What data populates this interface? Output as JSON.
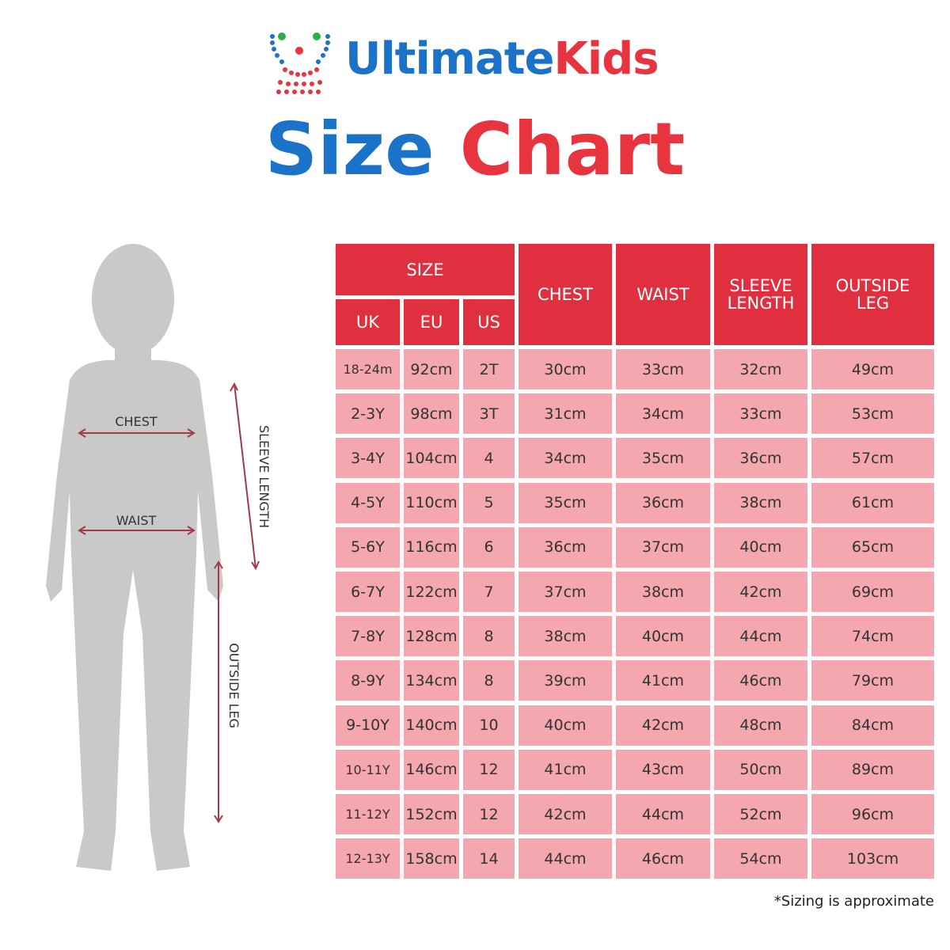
{
  "brand": {
    "first": "Ultimate",
    "second": "Kids"
  },
  "title": {
    "first": "Size",
    "second": "Chart"
  },
  "figure": {
    "chest": "CHEST",
    "waist": "WAIST",
    "sleeve": "SLEEVE LENGTH",
    "leg": "OUTSIDE LEG"
  },
  "table": {
    "group_header": "SIZE",
    "size_headers": [
      "UK",
      "EU",
      "US"
    ],
    "headers": [
      "CHEST",
      "WAIST",
      "SLEEVE LENGTH",
      "OUTSIDE LEG"
    ],
    "rows": [
      [
        "18-24m",
        "92cm",
        "2T",
        "30cm",
        "33cm",
        "32cm",
        "49cm"
      ],
      [
        "2-3Y",
        "98cm",
        "3T",
        "31cm",
        "34cm",
        "33cm",
        "53cm"
      ],
      [
        "3-4Y",
        "104cm",
        "4",
        "34cm",
        "35cm",
        "36cm",
        "57cm"
      ],
      [
        "4-5Y",
        "110cm",
        "5",
        "35cm",
        "36cm",
        "38cm",
        "61cm"
      ],
      [
        "5-6Y",
        "116cm",
        "6",
        "36cm",
        "37cm",
        "40cm",
        "65cm"
      ],
      [
        "6-7Y",
        "122cm",
        "7",
        "37cm",
        "38cm",
        "42cm",
        "69cm"
      ],
      [
        "7-8Y",
        "128cm",
        "8",
        "38cm",
        "40cm",
        "44cm",
        "74cm"
      ],
      [
        "8-9Y",
        "134cm",
        "8",
        "39cm",
        "41cm",
        "46cm",
        "79cm"
      ],
      [
        "9-10Y",
        "140cm",
        "10",
        "40cm",
        "42cm",
        "48cm",
        "84cm"
      ],
      [
        "10-11Y",
        "146cm",
        "12",
        "41cm",
        "43cm",
        "50cm",
        "89cm"
      ],
      [
        "11-12Y",
        "152cm",
        "12",
        "42cm",
        "44cm",
        "52cm",
        "96cm"
      ],
      [
        "12-13Y",
        "158cm",
        "14",
        "44cm",
        "46cm",
        "54cm",
        "103cm"
      ]
    ]
  },
  "note": "*Sizing is approximate"
}
